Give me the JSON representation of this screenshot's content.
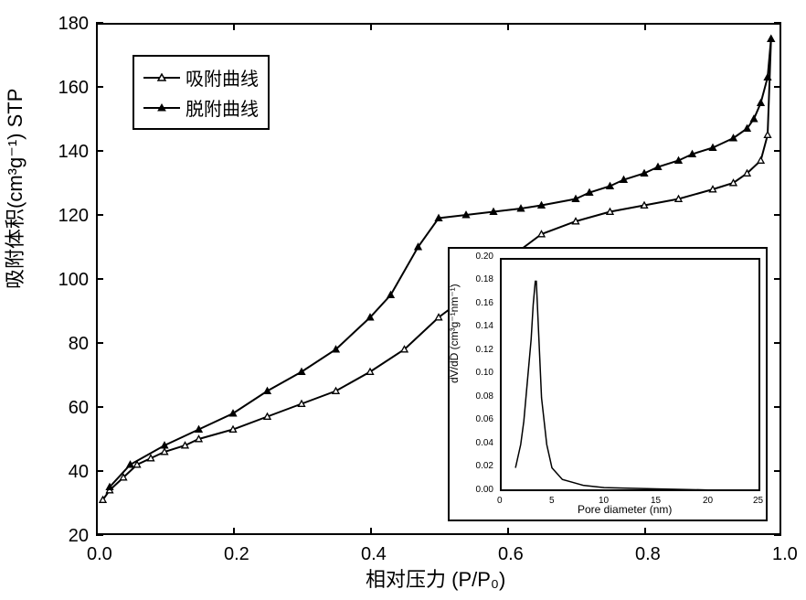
{
  "main_chart": {
    "type": "line",
    "y_label": "吸附体积(cm³g⁻¹) STP",
    "x_label": "相对压力 (P/P₀)",
    "xlim": [
      0.0,
      1.0
    ],
    "ylim": [
      20,
      180
    ],
    "xtick_step": 0.2,
    "ytick_step": 20,
    "background_color": "#ffffff",
    "border_color": "#000000",
    "line_color": "#000000",
    "line_width": 2,
    "marker_size": 7,
    "legend": {
      "position": "top-left",
      "items": [
        {
          "label": "吸附曲线",
          "marker": "triangle-open"
        },
        {
          "label": "脱附曲线",
          "marker": "triangle-filled"
        }
      ],
      "border_color": "#000000",
      "fontsize": 20
    },
    "series_adsorption": {
      "name": "吸附曲线",
      "marker": "triangle-open",
      "x": [
        0.01,
        0.02,
        0.04,
        0.06,
        0.08,
        0.1,
        0.13,
        0.15,
        0.2,
        0.25,
        0.3,
        0.35,
        0.4,
        0.45,
        0.5,
        0.55,
        0.6,
        0.65,
        0.7,
        0.75,
        0.8,
        0.85,
        0.9,
        0.93,
        0.95,
        0.97,
        0.98,
        0.985
      ],
      "y": [
        31,
        34,
        38,
        42,
        44,
        46,
        48,
        50,
        53,
        57,
        61,
        65,
        71,
        78,
        88,
        96,
        106,
        114,
        118,
        121,
        123,
        125,
        128,
        130,
        133,
        137,
        145,
        175
      ]
    },
    "series_desorption": {
      "name": "脱附曲线",
      "marker": "triangle-filled",
      "x": [
        0.985,
        0.98,
        0.97,
        0.96,
        0.95,
        0.93,
        0.9,
        0.87,
        0.85,
        0.82,
        0.8,
        0.77,
        0.75,
        0.72,
        0.7,
        0.65,
        0.62,
        0.58,
        0.54,
        0.5,
        0.47,
        0.43,
        0.4,
        0.35,
        0.3,
        0.25,
        0.2,
        0.15,
        0.1,
        0.05,
        0.02
      ],
      "y": [
        175,
        163,
        155,
        150,
        147,
        144,
        141,
        139,
        137,
        135,
        133,
        131,
        129,
        127,
        125,
        123,
        122,
        121,
        120,
        119,
        110,
        95,
        88,
        78,
        71,
        65,
        58,
        53,
        48,
        42,
        35
      ]
    },
    "label_fontsize": 22,
    "tick_fontsize": 20
  },
  "inset_chart": {
    "type": "line",
    "y_label": "dV/dD (cm³g⁻¹nm⁻¹)",
    "x_label": "Pore diameter (nm)",
    "xlim": [
      0,
      25
    ],
    "ylim": [
      0.0,
      0.2
    ],
    "xtick_step": 5,
    "ytick_step": 0.02,
    "line_color": "#000000",
    "background_color": "#ffffff",
    "border_color": "#000000",
    "line_width": 1.5,
    "label_fontsize": 12,
    "tick_fontsize": 10,
    "series": {
      "x": [
        1.5,
        2.0,
        2.3,
        2.5,
        2.7,
        3.0,
        3.2,
        3.4,
        3.5,
        3.7,
        4.0,
        4.5,
        5.0,
        6.0,
        8.0,
        10.0,
        15.0,
        20.0,
        25.0
      ],
      "y": [
        0.02,
        0.04,
        0.06,
        0.08,
        0.1,
        0.13,
        0.16,
        0.18,
        0.18,
        0.14,
        0.08,
        0.04,
        0.02,
        0.01,
        0.005,
        0.003,
        0.002,
        0.001,
        0.001
      ]
    }
  },
  "xtick_labels": [
    "0.0",
    "0.2",
    "0.4",
    "0.6",
    "0.8",
    "1.0"
  ],
  "ytick_labels": [
    "20",
    "40",
    "60",
    "80",
    "100",
    "120",
    "140",
    "160",
    "180"
  ],
  "inset_xtick_labels": [
    "0",
    "5",
    "10",
    "15",
    "20",
    "25"
  ],
  "inset_ytick_labels": [
    "0.00",
    "0.02",
    "0.04",
    "0.06",
    "0.08",
    "0.10",
    "0.12",
    "0.14",
    "0.16",
    "0.18",
    "0.20"
  ]
}
